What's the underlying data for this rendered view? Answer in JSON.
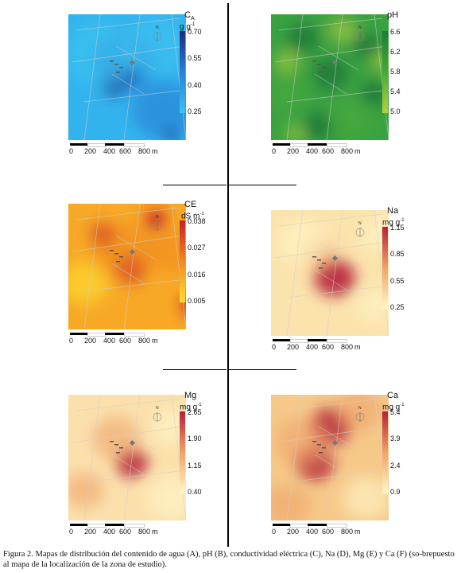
{
  "panels": [
    {
      "id": "A",
      "title": "C",
      "title_sub": "A",
      "units": "g g",
      "units_sup": "-1",
      "ticks": [
        "0.70",
        "0.55",
        "0.40",
        "0.25"
      ],
      "colors": {
        "high": "#1a2b7a",
        "mid": "#2a7fd4",
        "low": "#3cc4f0"
      },
      "base": "#33b3ee"
    },
    {
      "id": "B",
      "title": "pH",
      "title_sub": "",
      "units": "",
      "units_sup": "",
      "ticks": [
        "6.6",
        "6.2",
        "5.8",
        "5.4",
        "5.0"
      ],
      "colors": {
        "high": "#1d7a3a",
        "mid": "#48a83c",
        "low": "#b8d13a"
      },
      "base": "#3aa241"
    },
    {
      "id": "C",
      "title": "CE",
      "title_sub": "",
      "units": "dS m",
      "units_sup": "-1",
      "ticks": [
        "0.038",
        "0.027",
        "0.016",
        "0.005"
      ],
      "colors": {
        "high": "#c8202a",
        "mid": "#f08a22",
        "low": "#ffe030"
      },
      "base": "#f7a926"
    },
    {
      "id": "D",
      "title": "Na",
      "title_sub": "",
      "units": "mg g",
      "units_sup": "-1",
      "ticks": [
        "1.15",
        "0.85",
        "0.55",
        "0.25"
      ],
      "colors": {
        "high": "#b5203a",
        "mid": "#f0a36a",
        "low": "#fff7c8"
      },
      "base": "#fbe3ad"
    },
    {
      "id": "E",
      "title": "Mg",
      "title_sub": "",
      "units": "mg g",
      "units_sup": "-1",
      "ticks": [
        "2.65",
        "1.90",
        "1.15",
        "0.40"
      ],
      "colors": {
        "high": "#b5203a",
        "mid": "#f0a36a",
        "low": "#fff7c8"
      },
      "base": "#fbe0ac"
    },
    {
      "id": "F",
      "title": "Ca",
      "title_sub": "",
      "units": "mg g",
      "units_sup": "-1",
      "ticks": [
        "5.4",
        "3.9",
        "2.4",
        "0.9"
      ],
      "colors": {
        "high": "#b5203a",
        "mid": "#f0a36a",
        "low": "#fff7c8"
      },
      "base": "#f6c989"
    }
  ],
  "scalebar": {
    "labels": [
      "0",
      "200",
      "400",
      "600",
      "800"
    ],
    "unit": "m"
  },
  "north_label": "N",
  "caption": "Figura 2. Mapas de distribución del contenido de agua (A), pH (B), conductividad eléctrica (C), Na (D), Mg (E) y Ca (F) (so-brepuesto al mapa de la localización de la zona de estudio)."
}
